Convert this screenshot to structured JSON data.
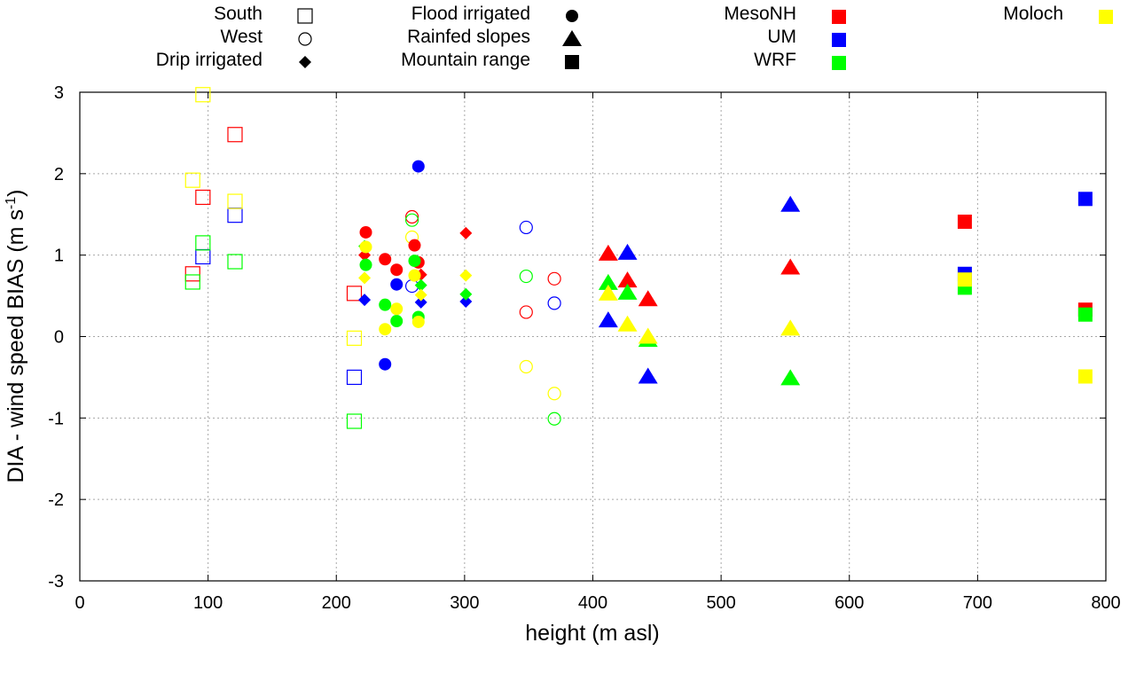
{
  "chart_data": {
    "type": "scatter",
    "xlabel": "height (m asl)",
    "ylabel": "DIA - wind speed BIAS (m s",
    "ylabel_sup": "-1",
    "ylabel_tail": ")",
    "xlim": [
      0,
      800
    ],
    "ylim": [
      -3,
      3
    ],
    "xticks": [
      0,
      100,
      200,
      300,
      400,
      500,
      600,
      700,
      800
    ],
    "yticks": [
      -3,
      -2,
      -1,
      0,
      1,
      2,
      3
    ],
    "grid": true,
    "legend": {
      "placement": "top",
      "sites": [
        {
          "label": "South",
          "marker": "open-square"
        },
        {
          "label": "West",
          "marker": "open-circle"
        },
        {
          "label": "Drip irrigated",
          "marker": "diamond"
        },
        {
          "label": "Flood irrigated",
          "marker": "circle"
        },
        {
          "label": "Rainfed slopes",
          "marker": "triangle"
        },
        {
          "label": "Mountain range",
          "marker": "square"
        }
      ],
      "models": [
        {
          "label": "MesoNH",
          "color": "#ff0000"
        },
        {
          "label": "UM",
          "color": "#0000ff"
        },
        {
          "label": "WRF",
          "color": "#00ff00"
        },
        {
          "label": "Moloch",
          "color": "#ffff00"
        }
      ]
    },
    "series": [
      {
        "site": "South",
        "model": "MesoNH",
        "marker": "open-square",
        "color": "#ff0000",
        "points": [
          [
            88,
            0.77
          ],
          [
            96,
            1.71
          ],
          [
            121,
            2.48
          ],
          [
            214,
            0.53
          ]
        ]
      },
      {
        "site": "South",
        "model": "UM",
        "marker": "open-square",
        "color": "#0000ff",
        "points": [
          [
            96,
            0.98
          ],
          [
            121,
            1.49
          ],
          [
            214,
            -0.5
          ]
        ]
      },
      {
        "site": "South",
        "model": "WRF",
        "marker": "open-square",
        "color": "#00ff00",
        "points": [
          [
            88,
            0.67
          ],
          [
            96,
            1.15
          ],
          [
            121,
            0.92
          ],
          [
            214,
            -1.04
          ]
        ]
      },
      {
        "site": "South",
        "model": "Moloch",
        "marker": "open-square",
        "color": "#ffff00",
        "points": [
          [
            88,
            1.92
          ],
          [
            96,
            2.97
          ],
          [
            121,
            1.66
          ],
          [
            214,
            -0.02
          ]
        ]
      },
      {
        "site": "West",
        "model": "MesoNH",
        "marker": "open-circle",
        "color": "#ff0000",
        "points": [
          [
            259,
            1.47
          ],
          [
            348,
            0.3
          ],
          [
            370,
            0.71
          ]
        ]
      },
      {
        "site": "West",
        "model": "UM",
        "marker": "open-circle",
        "color": "#0000ff",
        "points": [
          [
            259,
            0.62
          ],
          [
            348,
            1.34
          ],
          [
            370,
            0.41
          ]
        ]
      },
      {
        "site": "West",
        "model": "WRF",
        "marker": "open-circle",
        "color": "#00ff00",
        "points": [
          [
            259,
            1.43
          ],
          [
            348,
            0.74
          ],
          [
            370,
            -1.01
          ]
        ]
      },
      {
        "site": "West",
        "model": "Moloch",
        "marker": "open-circle",
        "color": "#ffff00",
        "points": [
          [
            259,
            1.22
          ],
          [
            348,
            -0.37
          ],
          [
            370,
            -0.7
          ]
        ]
      },
      {
        "site": "Drip irrigated",
        "model": "MesoNH",
        "marker": "diamond",
        "color": "#ff0000",
        "points": [
          [
            222,
            1.0
          ],
          [
            266,
            0.76
          ],
          [
            301,
            1.27
          ]
        ]
      },
      {
        "site": "Drip irrigated",
        "model": "UM",
        "marker": "diamond",
        "color": "#0000ff",
        "points": [
          [
            222,
            0.45
          ],
          [
            266,
            0.42
          ],
          [
            301,
            0.43
          ]
        ]
      },
      {
        "site": "Drip irrigated",
        "model": "WRF",
        "marker": "diamond",
        "color": "#00ff00",
        "points": [
          [
            222,
            1.11
          ],
          [
            266,
            0.63
          ],
          [
            301,
            0.52
          ]
        ]
      },
      {
        "site": "Drip irrigated",
        "model": "Moloch",
        "marker": "diamond",
        "color": "#ffff00",
        "points": [
          [
            222,
            0.72
          ],
          [
            266,
            0.51
          ],
          [
            301,
            0.75
          ]
        ]
      },
      {
        "site": "Flood irrigated",
        "model": "MesoNH",
        "marker": "circle",
        "color": "#ff0000",
        "points": [
          [
            223,
            1.28
          ],
          [
            238,
            0.95
          ],
          [
            247,
            0.82
          ],
          [
            261,
            1.12
          ],
          [
            264,
            0.91
          ]
        ]
      },
      {
        "site": "Flood irrigated",
        "model": "UM",
        "marker": "circle",
        "color": "#0000ff",
        "points": [
          [
            238,
            -0.34
          ],
          [
            247,
            0.64
          ],
          [
            264,
            2.09
          ]
        ]
      },
      {
        "site": "Flood irrigated",
        "model": "WRF",
        "marker": "circle",
        "color": "#00ff00",
        "points": [
          [
            223,
            0.88
          ],
          [
            238,
            0.39
          ],
          [
            247,
            0.19
          ],
          [
            261,
            0.93
          ],
          [
            264,
            0.24
          ]
        ]
      },
      {
        "site": "Flood irrigated",
        "model": "Moloch",
        "marker": "circle",
        "color": "#ffff00",
        "points": [
          [
            223,
            1.1
          ],
          [
            238,
            0.09
          ],
          [
            247,
            0.34
          ],
          [
            261,
            0.75
          ],
          [
            264,
            0.18
          ]
        ]
      },
      {
        "site": "Rainfed slopes",
        "model": "MesoNH",
        "marker": "triangle",
        "color": "#ff0000",
        "points": [
          [
            412,
            1.02
          ],
          [
            427,
            0.69
          ],
          [
            443,
            0.46
          ],
          [
            554,
            0.85
          ]
        ]
      },
      {
        "site": "Rainfed slopes",
        "model": "UM",
        "marker": "triangle",
        "color": "#0000ff",
        "points": [
          [
            412,
            0.2
          ],
          [
            427,
            1.03
          ],
          [
            443,
            -0.49
          ],
          [
            554,
            1.62
          ]
        ]
      },
      {
        "site": "Rainfed slopes",
        "model": "WRF",
        "marker": "triangle",
        "color": "#00ff00",
        "points": [
          [
            412,
            0.66
          ],
          [
            427,
            0.54
          ],
          [
            443,
            -0.04
          ],
          [
            554,
            -0.51
          ]
        ]
      },
      {
        "site": "Rainfed slopes",
        "model": "Moloch",
        "marker": "triangle",
        "color": "#ffff00",
        "points": [
          [
            412,
            0.53
          ],
          [
            427,
            0.15
          ],
          [
            443,
            0.0
          ],
          [
            554,
            0.1
          ]
        ]
      },
      {
        "site": "Mountain range",
        "model": "MesoNH",
        "marker": "square",
        "color": "#ff0000",
        "points": [
          [
            690,
            1.41
          ],
          [
            784,
            0.33
          ]
        ]
      },
      {
        "site": "Mountain range",
        "model": "UM",
        "marker": "square",
        "color": "#0000ff",
        "points": [
          [
            690,
            0.77
          ],
          [
            784,
            1.69
          ]
        ]
      },
      {
        "site": "Mountain range",
        "model": "WRF",
        "marker": "square",
        "color": "#00ff00",
        "points": [
          [
            690,
            0.6
          ],
          [
            784,
            0.27
          ]
        ]
      },
      {
        "site": "Mountain range",
        "model": "Moloch",
        "marker": "square",
        "color": "#ffff00",
        "points": [
          [
            690,
            0.7
          ],
          [
            784,
            -0.49
          ]
        ]
      }
    ]
  }
}
